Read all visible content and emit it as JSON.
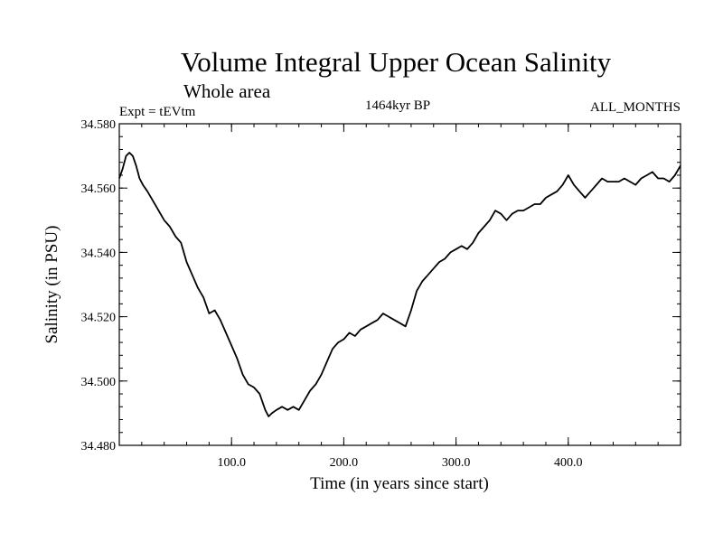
{
  "chart_data": {
    "type": "line",
    "title": "Volume Integral Upper Ocean Salinity",
    "subtitle": "Whole area",
    "left_label": "Expt = tEVtm",
    "center_label": "1464kyr BP",
    "right_label": "ALL_MONTHS",
    "xlabel": "Time (in years since start)",
    "ylabel": "Salinity (in PSU)",
    "xlim": [
      0,
      500
    ],
    "ylim": [
      34.48,
      34.58
    ],
    "x_ticks": [
      100,
      200,
      300,
      400
    ],
    "x_tick_labels": [
      "100.0",
      "200.0",
      "300.0",
      "400.0"
    ],
    "y_ticks": [
      34.48,
      34.5,
      34.52,
      34.54,
      34.56,
      34.58
    ],
    "y_tick_labels": [
      "34.480",
      "34.500",
      "34.520",
      "34.540",
      "34.560",
      "34.580"
    ],
    "series": [
      {
        "name": "Salinity",
        "color": "#000000",
        "x": [
          0,
          3,
          6,
          9,
          12,
          15,
          18,
          21,
          25,
          30,
          35,
          40,
          45,
          50,
          55,
          60,
          65,
          70,
          75,
          80,
          85,
          90,
          95,
          100,
          105,
          110,
          115,
          120,
          125,
          130,
          133,
          136,
          140,
          145,
          150,
          155,
          160,
          165,
          170,
          175,
          180,
          185,
          190,
          195,
          200,
          205,
          210,
          215,
          220,
          225,
          230,
          235,
          240,
          245,
          250,
          255,
          260,
          265,
          270,
          275,
          280,
          285,
          290,
          295,
          300,
          305,
          310,
          315,
          320,
          325,
          330,
          335,
          340,
          345,
          350,
          355,
          360,
          365,
          370,
          375,
          380,
          385,
          390,
          395,
          400,
          405,
          410,
          415,
          420,
          425,
          430,
          435,
          440,
          445,
          450,
          455,
          460,
          465,
          470,
          475,
          480,
          485,
          490,
          495,
          500
        ],
        "values": [
          34.563,
          34.566,
          34.57,
          34.571,
          34.57,
          34.567,
          34.563,
          34.561,
          34.559,
          34.556,
          34.553,
          34.55,
          34.548,
          34.545,
          34.543,
          34.537,
          34.533,
          34.529,
          34.526,
          34.521,
          34.522,
          34.519,
          34.515,
          34.511,
          34.507,
          34.502,
          34.499,
          34.498,
          34.496,
          34.491,
          34.489,
          34.49,
          34.491,
          34.492,
          34.491,
          34.492,
          34.491,
          34.494,
          34.497,
          34.499,
          34.502,
          34.506,
          34.51,
          34.512,
          34.513,
          34.515,
          34.514,
          34.516,
          34.517,
          34.518,
          34.519,
          34.521,
          34.52,
          34.519,
          34.518,
          34.517,
          34.522,
          34.528,
          34.531,
          34.533,
          34.535,
          34.537,
          34.538,
          34.54,
          34.541,
          34.542,
          34.541,
          34.543,
          34.546,
          34.548,
          34.55,
          34.553,
          34.552,
          34.55,
          34.552,
          34.553,
          34.553,
          34.554,
          34.555,
          34.555,
          34.557,
          34.558,
          34.559,
          34.561,
          34.564,
          34.561,
          34.559,
          34.557,
          34.559,
          34.561,
          34.563,
          34.562,
          34.562,
          34.562,
          34.563,
          34.562,
          34.561,
          34.563,
          34.564,
          34.565,
          34.563,
          34.563,
          34.562,
          34.564,
          34.567
        ]
      }
    ]
  }
}
